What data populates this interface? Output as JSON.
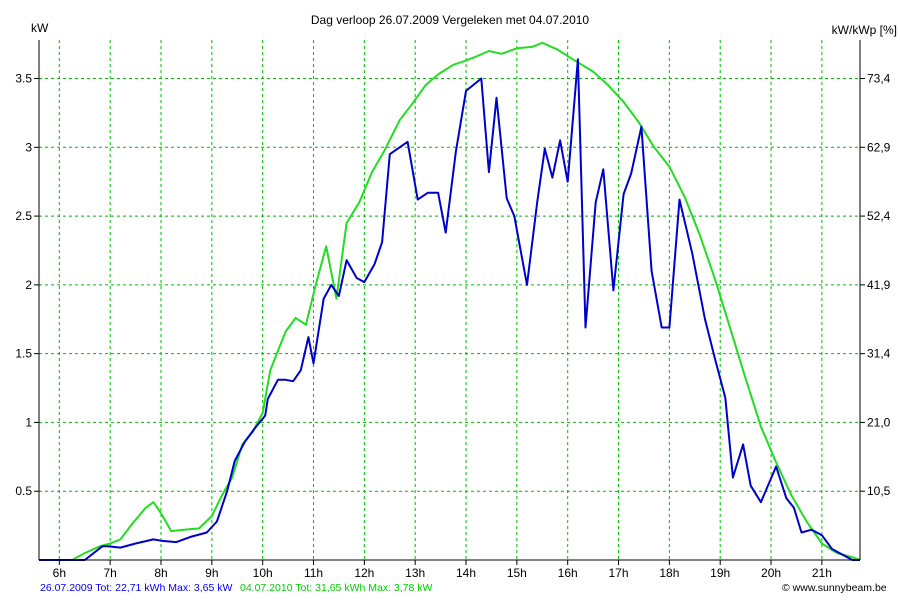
{
  "colors": {
    "series_a": "#0000cc",
    "series_b": "#22dd22",
    "grid": "#00bb00",
    "background": "#ffffff"
  },
  "chart_data": {
    "type": "line",
    "title": "Dag  verloop 26.07.2009    Vergeleken met 04.07.2010",
    "ylabel_left": "kW",
    "ylabel_right": "kW/kWp [%]",
    "x_range_hours": [
      5.6,
      21.75
    ],
    "ylim": [
      0,
      3.78
    ],
    "x_tick_labels": [
      "6h",
      "7h",
      "8h",
      "9h",
      "10h",
      "11h",
      "12h",
      "13h",
      "14h",
      "15h",
      "16h",
      "17h",
      "18h",
      "19h",
      "20h",
      "21h"
    ],
    "x_tick_values": [
      6,
      7,
      8,
      9,
      10,
      11,
      12,
      13,
      14,
      15,
      16,
      17,
      18,
      19,
      20,
      21
    ],
    "y_left_ticks": [
      0.5,
      1,
      1.5,
      2,
      2.5,
      3,
      3.5
    ],
    "y_left_tick_labels": [
      "0.5",
      "1",
      "1.5",
      "2",
      "2.5",
      "3",
      "3.5"
    ],
    "y_right_ticks": [
      0.5,
      1,
      1.5,
      2,
      2.5,
      3,
      3.5
    ],
    "y_right_tick_labels": [
      "10,5",
      "21,0",
      "31,4",
      "41,9",
      "52,4",
      "62,9",
      "73,4"
    ],
    "grid": true,
    "series": [
      {
        "label": "26.07.2009",
        "color": "#0000cc",
        "x": [
          5.6,
          6.5,
          6.85,
          6.95,
          7.2,
          7.5,
          7.85,
          8.0,
          8.3,
          8.6,
          8.9,
          9.1,
          9.3,
          9.45,
          9.65,
          9.85,
          10.05,
          10.1,
          10.3,
          10.45,
          10.6,
          10.75,
          10.9,
          11.0,
          11.2,
          11.35,
          11.5,
          11.65,
          11.85,
          12.0,
          12.2,
          12.35,
          12.5,
          12.85,
          13.05,
          13.25,
          13.45,
          13.6,
          13.8,
          14.0,
          14.3,
          14.45,
          14.6,
          14.8,
          14.95,
          15.2,
          15.4,
          15.55,
          15.7,
          15.85,
          16.0,
          16.2,
          16.35,
          16.55,
          16.7,
          16.9,
          17.1,
          17.25,
          17.45,
          17.65,
          17.85,
          18.0,
          18.2,
          18.45,
          18.7,
          18.9,
          19.1,
          19.25,
          19.45,
          19.6,
          19.8,
          20.1,
          20.3,
          20.45,
          20.6,
          20.8,
          21.0,
          21.2,
          21.4,
          21.6,
          21.75
        ],
        "values": [
          0,
          0,
          0.1,
          0.1,
          0.09,
          0.12,
          0.15,
          0.14,
          0.13,
          0.17,
          0.2,
          0.28,
          0.5,
          0.72,
          0.86,
          0.96,
          1.05,
          1.17,
          1.31,
          1.31,
          1.3,
          1.38,
          1.62,
          1.43,
          1.9,
          2.0,
          1.92,
          2.18,
          2.05,
          2.02,
          2.15,
          2.31,
          2.95,
          3.04,
          2.62,
          2.67,
          2.67,
          2.38,
          2.97,
          3.41,
          3.5,
          2.82,
          3.36,
          2.63,
          2.5,
          2.0,
          2.6,
          2.99,
          2.78,
          3.05,
          2.75,
          3.64,
          1.69,
          2.6,
          2.84,
          1.96,
          2.66,
          2.81,
          3.15,
          2.1,
          1.69,
          1.69,
          2.62,
          2.23,
          1.75,
          1.46,
          1.18,
          0.6,
          0.84,
          0.54,
          0.42,
          0.68,
          0.45,
          0.38,
          0.2,
          0.22,
          0.18,
          0.08,
          0.04,
          0,
          0
        ]
      },
      {
        "label": "04.07.2010",
        "color": "#22dd22",
        "x": [
          5.6,
          6.25,
          6.5,
          6.8,
          7.0,
          7.2,
          7.45,
          7.7,
          7.85,
          8.0,
          8.2,
          8.45,
          8.75,
          9.0,
          9.2,
          9.4,
          9.6,
          9.8,
          10.0,
          10.15,
          10.3,
          10.45,
          10.65,
          10.85,
          11.05,
          11.25,
          11.45,
          11.65,
          11.9,
          12.15,
          12.4,
          12.7,
          12.95,
          13.2,
          13.45,
          13.75,
          14.0,
          14.2,
          14.45,
          14.7,
          15.0,
          15.3,
          15.5,
          15.8,
          16.1,
          16.5,
          16.8,
          17.1,
          17.4,
          17.7,
          18.0,
          18.3,
          18.6,
          18.9,
          19.2,
          19.5,
          19.8,
          20.1,
          20.4,
          20.7,
          21.0,
          21.3,
          21.6,
          21.75
        ],
        "values": [
          0,
          0,
          0.05,
          0.1,
          0.12,
          0.15,
          0.27,
          0.38,
          0.42,
          0.34,
          0.21,
          0.22,
          0.23,
          0.32,
          0.47,
          0.6,
          0.84,
          0.93,
          1.07,
          1.38,
          1.52,
          1.66,
          1.76,
          1.71,
          2.01,
          2.28,
          1.9,
          2.45,
          2.6,
          2.82,
          2.98,
          3.2,
          3.32,
          3.45,
          3.53,
          3.6,
          3.63,
          3.66,
          3.7,
          3.68,
          3.72,
          3.73,
          3.76,
          3.71,
          3.64,
          3.55,
          3.45,
          3.33,
          3.18,
          3.0,
          2.86,
          2.64,
          2.36,
          2.04,
          1.68,
          1.32,
          0.97,
          0.71,
          0.47,
          0.28,
          0.12,
          0.05,
          0.02,
          0
        ]
      }
    ]
  },
  "footer": {
    "series_a_text": "26.07.2009 Tot: 22,71 kWh Max: 3,65 kW",
    "series_b_text": "04.07.2010 Tot: 31,65 kWh Max: 3,78 kW",
    "brand": "© www.sunnybeam.be"
  }
}
